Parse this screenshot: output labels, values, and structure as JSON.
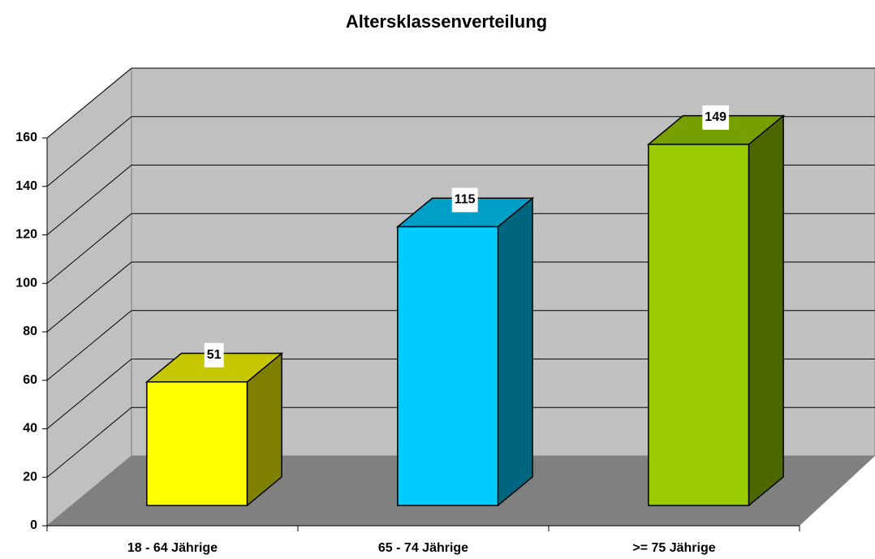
{
  "chart_data": {
    "type": "bar3d",
    "title": "Altersklassenverteilung",
    "categories": [
      "18 - 64 Jährige",
      "65 - 74 Jährige",
      ">= 75 Jährige"
    ],
    "values": [
      51,
      115,
      149
    ],
    "colors": [
      "#ffff00",
      "#00ccff",
      "#99cc00"
    ],
    "ylim": [
      0,
      160
    ],
    "yticks": [
      0,
      20,
      40,
      60,
      80,
      100,
      120,
      140,
      160
    ],
    "grid": true
  }
}
